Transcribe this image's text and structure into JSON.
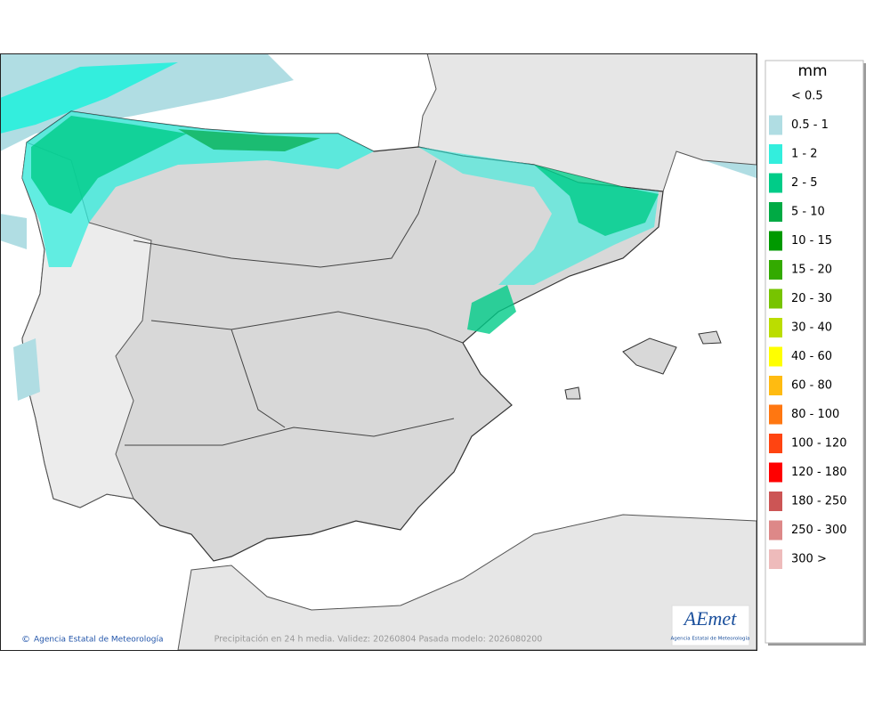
{
  "legend": {
    "title": "mm",
    "items": [
      {
        "label": "< 0.5"
      },
      {
        "label": "0.5 - 1",
        "color": "#b0dde3"
      },
      {
        "label": "1 - 2",
        "color": "#33eedd"
      },
      {
        "label": "2 - 5",
        "color": "#00cc88"
      },
      {
        "label": "5 - 10",
        "color": "#00aa44"
      },
      {
        "label": "10 - 15",
        "color": "#009900"
      },
      {
        "label": "15 - 20",
        "color": "#33aa00"
      },
      {
        "label": "20 - 30",
        "color": "#77c400"
      },
      {
        "label": "30 - 40",
        "color": "#bbdd00"
      },
      {
        "label": "40 - 60",
        "color": "#ffff00"
      },
      {
        "label": "60 - 80",
        "color": "#ffbb11"
      },
      {
        "label": "80 - 100",
        "color": "#ff7711"
      },
      {
        "label": "100 - 120",
        "color": "#ff4411"
      },
      {
        "label": "120 - 180",
        "color": "#ff0000"
      },
      {
        "label": "180 - 250",
        "color": "#cc5555"
      },
      {
        "label": "250 - 300",
        "color": "#dd8888"
      },
      {
        "label": "300 >",
        "color": "#eebbbb"
      }
    ]
  },
  "footer": {
    "credit": "Agencia Estatal de Meteorología",
    "caption": "Precipitación en 24 h media. Validez: 20260804 Pasada modelo: 2026080200"
  },
  "logo": {
    "text": "AEmet",
    "subtitle": "Agencia Estatal de Meteorología"
  }
}
